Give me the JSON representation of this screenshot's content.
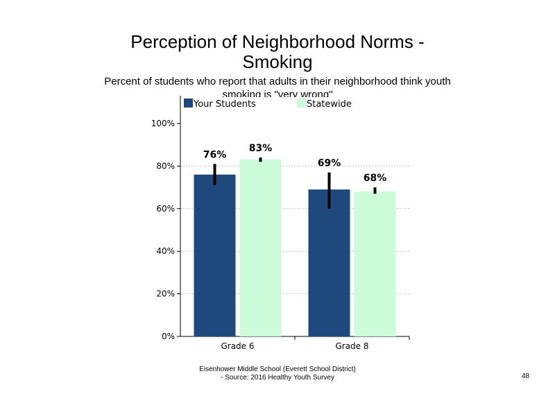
{
  "header": {
    "title_line1": "Perception of Neighborhood Norms -",
    "title_line2": "Smoking",
    "subtitle": "Percent of students who report that adults in their neighborhood think youth smoking is \"very wrong\""
  },
  "footer": {
    "line1": "Eisenhower Middle School (Everett School District)",
    "line2": "- Source: 2016 Healthy  Youth Survey"
  },
  "page_number": "48",
  "colors": {
    "your_students": "#1f497d",
    "statewide": "#ccfbd9",
    "error_bar": "#000000",
    "grid": "#bfbfbf"
  },
  "chart_data": {
    "type": "bar",
    "categories": [
      "Grade 6",
      "Grade 8"
    ],
    "series": [
      {
        "name": "Your Students",
        "values": [
          76,
          69
        ],
        "labels": [
          "76%",
          "69%"
        ],
        "error_low": [
          71,
          60
        ],
        "error_high": [
          81,
          77
        ]
      },
      {
        "name": "Statewide",
        "values": [
          83,
          68
        ],
        "labels": [
          "83%",
          "68%"
        ],
        "error_low": [
          82,
          67
        ],
        "error_high": [
          84,
          70
        ]
      }
    ],
    "ylim": [
      0,
      100
    ],
    "yticks": [
      0,
      20,
      40,
      60,
      80,
      100
    ],
    "ytick_labels": [
      "0%",
      "20%",
      "40%",
      "60%",
      "80%",
      "100%"
    ],
    "grid": true,
    "legend": "top"
  }
}
